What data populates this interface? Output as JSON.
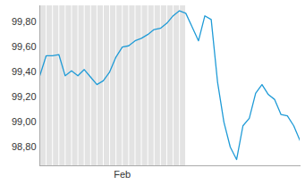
{
  "chart_data": {
    "type": "line",
    "categories": [
      null,
      null,
      null,
      null,
      null,
      null,
      null,
      null,
      null,
      null,
      null,
      null,
      null,
      "Feb",
      null,
      null,
      null,
      null,
      null,
      null,
      null,
      null,
      null,
      null,
      null,
      null,
      null,
      null,
      null,
      null,
      null,
      null,
      null,
      null,
      null,
      null,
      null,
      null,
      null,
      null,
      null,
      null
    ],
    "values": [
      99.37,
      99.53,
      99.53,
      99.54,
      99.37,
      99.41,
      99.37,
      99.42,
      99.36,
      99.3,
      99.33,
      99.4,
      99.52,
      99.6,
      99.61,
      99.65,
      99.67,
      99.7,
      99.74,
      99.75,
      99.79,
      99.85,
      99.89,
      99.87,
      99.76,
      99.65,
      99.85,
      99.82,
      99.32,
      99.0,
      98.8,
      98.7,
      98.97,
      99.03,
      99.23,
      99.3,
      99.22,
      99.18,
      99.06,
      99.05,
      98.97,
      98.85
    ],
    "color": "#1f9bd7",
    "shaded": [
      0,
      23
    ],
    "ylim": [
      98.65,
      99.93
    ],
    "yticks": [
      {
        "value": 98.8,
        "label": "98,80"
      },
      {
        "value": 99.0,
        "label": "99,00"
      },
      {
        "value": 99.2,
        "label": "99,20"
      },
      {
        "value": 99.4,
        "label": "99,40"
      },
      {
        "value": 99.6,
        "label": "99,60"
      },
      {
        "value": 99.8,
        "label": "99,80"
      }
    ],
    "grid": false
  }
}
